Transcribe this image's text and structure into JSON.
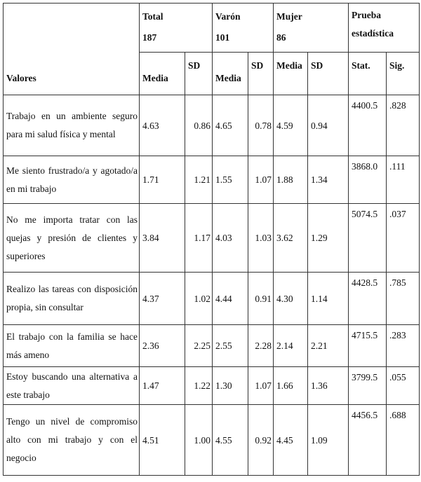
{
  "table": {
    "groups": [
      {
        "name": "Total",
        "n": "187"
      },
      {
        "name": "Varón",
        "n": "101"
      },
      {
        "name": "Mujer",
        "n": "86"
      },
      {
        "name": "Prueba estadística",
        "n": ""
      }
    ],
    "subheaders": {
      "valores": "Valores",
      "total_media": "Media",
      "total_sd": "SD",
      "varon_media": "Media",
      "varon_sd": "SD",
      "mujer_media": "Media",
      "mujer_sd": "SD",
      "stat": "Stat.",
      "sig": "Sig."
    },
    "rows": [
      {
        "label": "Trabajo en un ambiente seguro para mi salud física y mental",
        "total_media": "4.63",
        "total_sd": "0.86",
        "varon_media": "4.65",
        "varon_sd": "0.78",
        "mujer_media": "4.59",
        "mujer_sd": "0.94",
        "stat": "4400.5",
        "sig": ".828"
      },
      {
        "label": "Me siento frustrado/a y agotado/a en mi trabajo",
        "total_media": "1.71",
        "total_sd": "1.21",
        "varon_media": "1.55",
        "varon_sd": "1.07",
        "mujer_media": "1.88",
        "mujer_sd": "1.34",
        "stat": "3868.0",
        "sig": ".111"
      },
      {
        "label": "No me importa tratar con las quejas y presión de clientes y superiores",
        "total_media": "3.84",
        "total_sd": "1.17",
        "varon_media": "4.03",
        "varon_sd": "1.03",
        "mujer_media": "3.62",
        "mujer_sd": "1.29",
        "stat": "5074.5",
        "sig": ".037"
      },
      {
        "label": "Realizo las tareas con disposición propia, sin consultar",
        "total_media": "4.37",
        "total_sd": "1.02",
        "varon_media": "4.44",
        "varon_sd": "0.91",
        "mujer_media": "4.30",
        "mujer_sd": "1.14",
        "stat": "4428.5",
        "sig": ".785"
      },
      {
        "label": "El trabajo con la familia se hace más ameno",
        "total_media": "2.36",
        "total_sd": "2.25",
        "varon_media": "2.55",
        "varon_sd": "2.28",
        "mujer_media": "2.14",
        "mujer_sd": "2.21",
        "stat": "4715.5",
        "sig": ".283"
      },
      {
        "label": "Estoy buscando una alternativa a este trabajo",
        "total_media": "1.47",
        "total_sd": "1.22",
        "varon_media": "1.30",
        "varon_sd": "1.07",
        "mujer_media": "1.66",
        "mujer_sd": "1.36",
        "stat": "3799.5",
        "sig": ".055"
      },
      {
        "label": "Tengo un nivel de compromiso alto con mi trabajo y con el negocio",
        "total_media": "4.51",
        "total_sd": "1.00",
        "varon_media": "4.55",
        "varon_sd": "0.92",
        "mujer_media": "4.45",
        "mujer_sd": "1.09",
        "stat": "4456.5",
        "sig": ".688"
      }
    ]
  }
}
